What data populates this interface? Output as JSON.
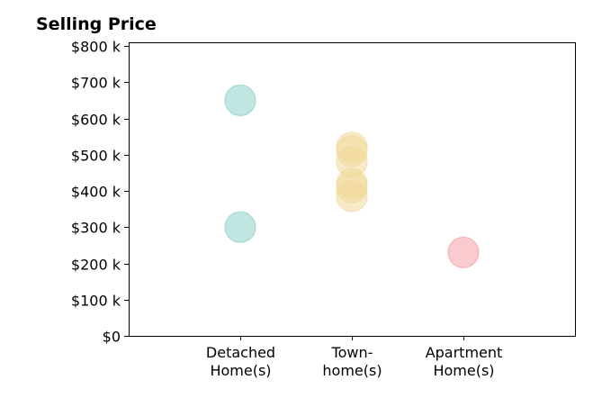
{
  "chart_data": {
    "type": "scatter",
    "title": "Selling Price",
    "xlabel": "",
    "ylabel": "",
    "categories": [
      [
        "Detached",
        "Home(s)"
      ],
      [
        "Town-",
        "home(s)"
      ],
      [
        "Apartment",
        "Home(s)"
      ]
    ],
    "xlim": [
      -1,
      3
    ],
    "ylim": [
      0,
      810000
    ],
    "y_ticks": [
      0,
      100000,
      200000,
      300000,
      400000,
      500000,
      600000,
      700000,
      800000
    ],
    "y_tick_labels": [
      "$0",
      "$100 k",
      "$200 k",
      "$300 k",
      "$400 k",
      "$500 k",
      "$600 k",
      "$700 k",
      "$800 k"
    ],
    "grid": false,
    "legend": "none",
    "series": [
      {
        "category_index": 0,
        "color": "#8ecfc6",
        "values": [
          650000,
          300000
        ]
      },
      {
        "category_index": 1,
        "color": "#f0d99a",
        "values": [
          520000,
          510000,
          480000,
          420000,
          410000,
          385000
        ]
      },
      {
        "category_index": 2,
        "color": "#f4a0a6",
        "values": [
          230000
        ]
      }
    ]
  }
}
